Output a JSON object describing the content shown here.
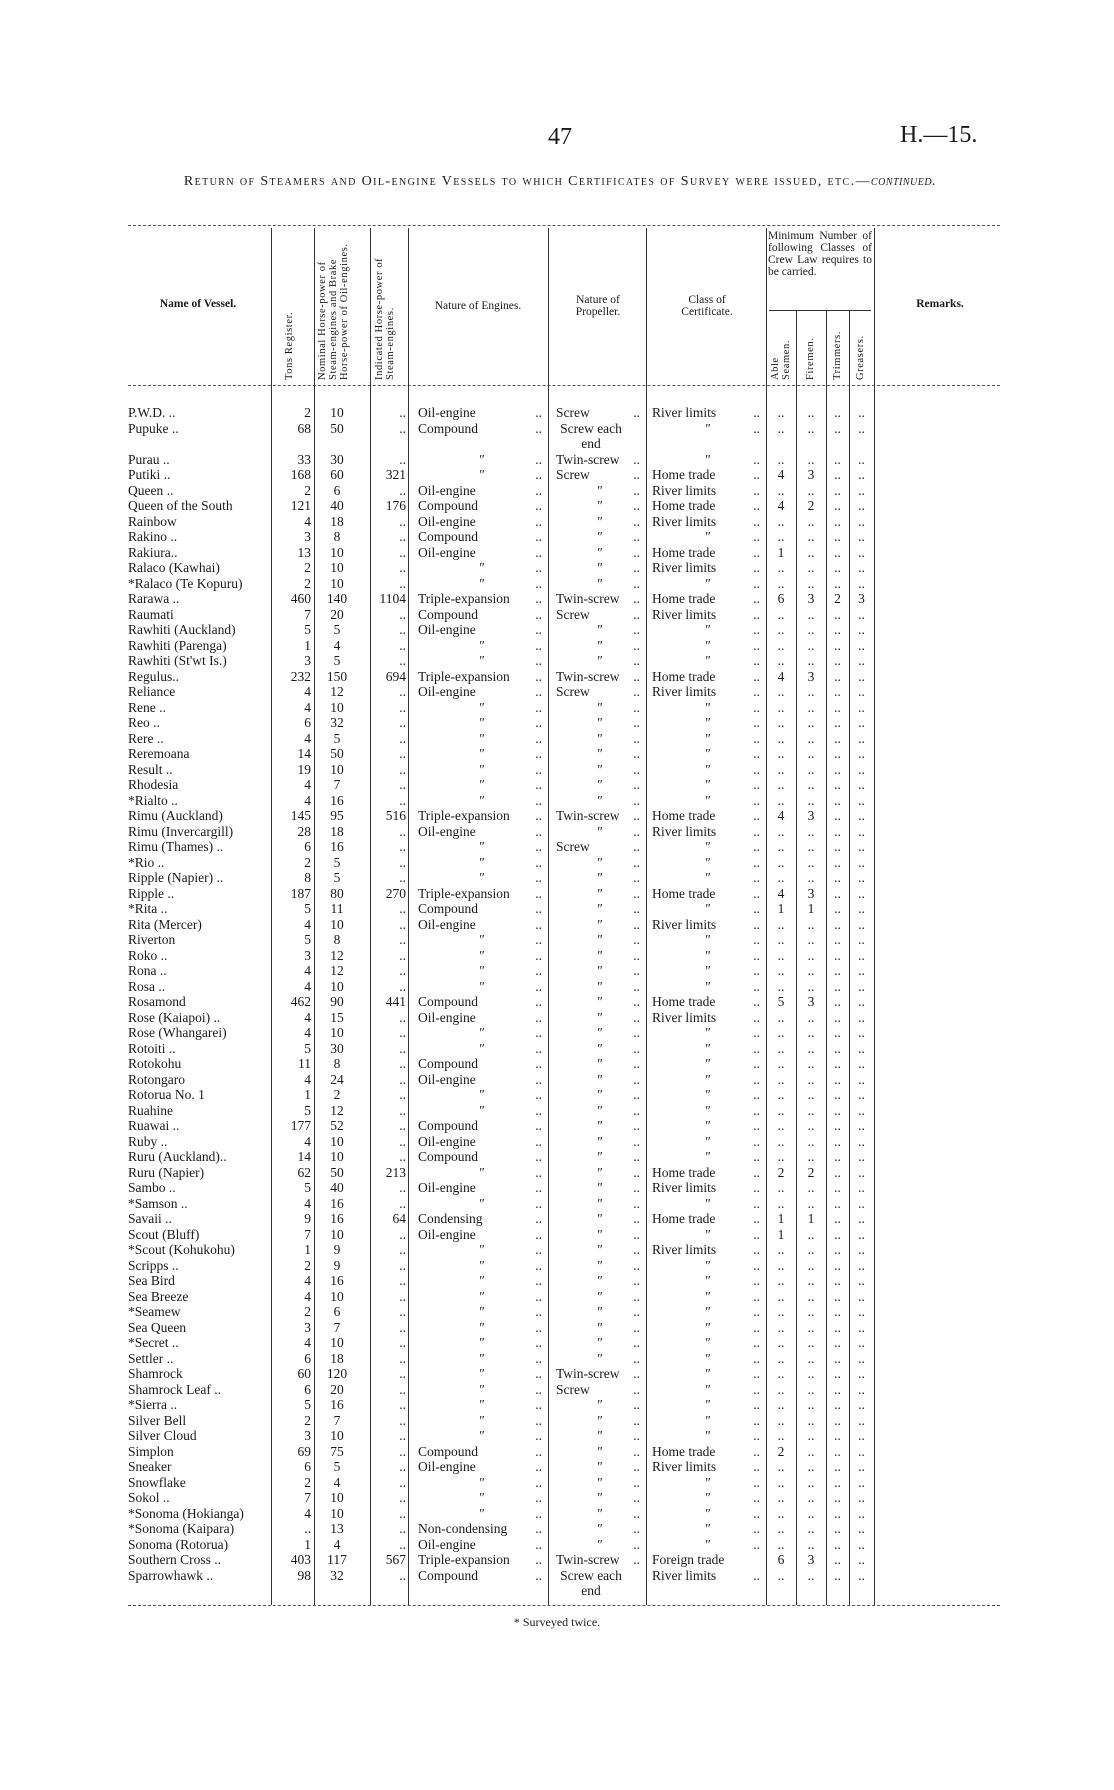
{
  "page_number": "47",
  "document_ref": "H.—15.",
  "title_main": "Return of Steamers and Oil-engine Vessels to which Certificates of Survey were issued, etc.—",
  "title_cont": "continued.",
  "headers": {
    "name": "Name of Vessel.",
    "tons": "Tons Register.",
    "nominal_hp": "Nominal Horse-power of Steam-engines and Brake Horse-power of Oil-engines.",
    "indicated_hp": "Indicated Horse-power of Steam-engines.",
    "engines": "Nature of Engines.",
    "propeller": "Nature of Propeller.",
    "certificate": "Class of Certificate.",
    "crew_group": "Minimum Number of following Classes of Crew Law requires to be carried.",
    "able": "Able Seamen.",
    "firemen": "Firemen.",
    "trimmers": "Trimmers.",
    "greasers": "Greasers.",
    "remarks": "Remarks."
  },
  "rows": [
    {
      "n": "P.W.D. ..",
      "t": "2",
      "nhp": "10",
      "ihp": "..",
      "eng": "Oil-engine",
      "prop": "Screw",
      "cert": "River limits",
      "as": "..",
      "fi": "..",
      "tr": "..",
      "gr": ".."
    },
    {
      "n": "Pupuke ..",
      "t": "68",
      "nhp": "50",
      "ihp": "..",
      "eng": "Compound",
      "prop": "Screw each end",
      "cert": "″",
      "as": "..",
      "fi": "..",
      "tr": "..",
      "gr": ".."
    },
    {
      "n": "Purau ..",
      "t": "33",
      "nhp": "30",
      "ihp": "..",
      "eng": "″",
      "prop": "Twin-screw",
      "cert": "″",
      "as": "..",
      "fi": "..",
      "tr": "..",
      "gr": ".."
    },
    {
      "n": "Putiki ..",
      "t": "168",
      "nhp": "60",
      "ihp": "321",
      "eng": "″",
      "prop": "Screw",
      "cert": "Home trade",
      "as": "4",
      "fi": "3",
      "tr": "..",
      "gr": ".."
    },
    {
      "n": "Queen ..",
      "t": "2",
      "nhp": "6",
      "ihp": "..",
      "eng": "Oil-engine",
      "prop": "″",
      "cert": "River limits",
      "as": "..",
      "fi": "..",
      "tr": "..",
      "gr": ".."
    },
    {
      "n": "Queen of the South",
      "t": "121",
      "nhp": "40",
      "ihp": "176",
      "eng": "Compound",
      "prop": "″",
      "cert": "Home trade",
      "as": "4",
      "fi": "2",
      "tr": "..",
      "gr": ".."
    },
    {
      "n": "Rainbow",
      "t": "4",
      "nhp": "18",
      "ihp": "..",
      "eng": "Oil-engine",
      "prop": "″",
      "cert": "River limits",
      "as": "..",
      "fi": "..",
      "tr": "..",
      "gr": ".."
    },
    {
      "n": "Rakino ..",
      "t": "3",
      "nhp": "8",
      "ihp": "..",
      "eng": "Compound",
      "prop": "″",
      "cert": "″",
      "as": "..",
      "fi": "..",
      "tr": "..",
      "gr": ".."
    },
    {
      "n": "Rakiura..",
      "t": "13",
      "nhp": "10",
      "ihp": "..",
      "eng": "Oil-engine",
      "prop": "″",
      "cert": "Home trade",
      "as": "1",
      "fi": "..",
      "tr": "..",
      "gr": ".."
    },
    {
      "n": "Ralaco (Kawhai)",
      "t": "2",
      "nhp": "10",
      "ihp": "..",
      "eng": "″",
      "prop": "″",
      "cert": "River limits",
      "as": "..",
      "fi": "..",
      "tr": "..",
      "gr": ".."
    },
    {
      "n": "*Ralaco (Te Kopuru)",
      "t": "2",
      "nhp": "10",
      "ihp": "..",
      "eng": "″",
      "prop": "″",
      "cert": "″",
      "as": "..",
      "fi": "..",
      "tr": "..",
      "gr": ".."
    },
    {
      "n": "Rarawa ..",
      "t": "460",
      "nhp": "140",
      "ihp": "1104",
      "eng": "Triple-expansion",
      "prop": "Twin-screw",
      "cert": "Home trade",
      "as": "6",
      "fi": "3",
      "tr": "2",
      "gr": "3"
    },
    {
      "n": "Raumati",
      "t": "7",
      "nhp": "20",
      "ihp": "..",
      "eng": "Compound",
      "prop": "Screw",
      "cert": "River limits",
      "as": "..",
      "fi": "..",
      "tr": "..",
      "gr": ".."
    },
    {
      "n": "Rawhiti (Auckland)",
      "t": "5",
      "nhp": "5",
      "ihp": "..",
      "eng": "Oil-engine",
      "prop": "″",
      "cert": "″",
      "as": "..",
      "fi": "..",
      "tr": "..",
      "gr": ".."
    },
    {
      "n": "Rawhiti (Parenga)",
      "t": "1",
      "nhp": "4",
      "ihp": "..",
      "eng": "″",
      "prop": "″",
      "cert": "″",
      "as": "..",
      "fi": "..",
      "tr": "..",
      "gr": ".."
    },
    {
      "n": "Rawhiti (St'wt Is.)",
      "t": "3",
      "nhp": "5",
      "ihp": "..",
      "eng": "″",
      "prop": "″",
      "cert": "″",
      "as": "..",
      "fi": "..",
      "tr": "..",
      "gr": ".."
    },
    {
      "n": "Regulus..",
      "t": "232",
      "nhp": "150",
      "ihp": "694",
      "eng": "Triple-expansion",
      "prop": "Twin-screw",
      "cert": "Home trade",
      "as": "4",
      "fi": "3",
      "tr": "..",
      "gr": ".."
    },
    {
      "n": "Reliance",
      "t": "4",
      "nhp": "12",
      "ihp": "..",
      "eng": "Oil-engine",
      "prop": "Screw",
      "cert": "River limits",
      "as": "..",
      "fi": "..",
      "tr": "..",
      "gr": ".."
    },
    {
      "n": "Rene ..",
      "t": "4",
      "nhp": "10",
      "ihp": "..",
      "eng": "″",
      "prop": "″",
      "cert": "″",
      "as": "..",
      "fi": "..",
      "tr": "..",
      "gr": ".."
    },
    {
      "n": "Reo ..",
      "t": "6",
      "nhp": "32",
      "ihp": "..",
      "eng": "″",
      "prop": "″",
      "cert": "″",
      "as": "..",
      "fi": "..",
      "tr": "..",
      "gr": ".."
    },
    {
      "n": "Rere ..",
      "t": "4",
      "nhp": "5",
      "ihp": "..",
      "eng": "″",
      "prop": "″",
      "cert": "″",
      "as": "..",
      "fi": "..",
      "tr": "..",
      "gr": ".."
    },
    {
      "n": "Reremoana",
      "t": "14",
      "nhp": "50",
      "ihp": "..",
      "eng": "″",
      "prop": "″",
      "cert": "″",
      "as": "..",
      "fi": "..",
      "tr": "..",
      "gr": ".."
    },
    {
      "n": "Result ..",
      "t": "19",
      "nhp": "10",
      "ihp": "..",
      "eng": "″",
      "prop": "″",
      "cert": "″",
      "as": "..",
      "fi": "..",
      "tr": "..",
      "gr": ".."
    },
    {
      "n": "Rhodesia",
      "t": "4",
      "nhp": "7",
      "ihp": "..",
      "eng": "″",
      "prop": "″",
      "cert": "″",
      "as": "..",
      "fi": "..",
      "tr": "..",
      "gr": ".."
    },
    {
      "n": "*Rialto ..",
      "t": "4",
      "nhp": "16",
      "ihp": "..",
      "eng": "″",
      "prop": "″",
      "cert": "″",
      "as": "..",
      "fi": "..",
      "tr": "..",
      "gr": ".."
    },
    {
      "n": "Rimu (Auckland)",
      "t": "145",
      "nhp": "95",
      "ihp": "516",
      "eng": "Triple-expansion",
      "prop": "Twin-screw",
      "cert": "Home trade",
      "as": "4",
      "fi": "3",
      "tr": "..",
      "gr": ".."
    },
    {
      "n": "Rimu (Invercargill)",
      "t": "28",
      "nhp": "18",
      "ihp": "..",
      "eng": "Oil-engine",
      "prop": "″",
      "cert": "River limits",
      "as": "..",
      "fi": "..",
      "tr": "..",
      "gr": ".."
    },
    {
      "n": "Rimu (Thames) ..",
      "t": "6",
      "nhp": "16",
      "ihp": "..",
      "eng": "″",
      "prop": "Screw",
      "cert": "″",
      "as": "..",
      "fi": "..",
      "tr": "..",
      "gr": ".."
    },
    {
      "n": "*Rio ..",
      "t": "2",
      "nhp": "5",
      "ihp": "..",
      "eng": "″",
      "prop": "″",
      "cert": "″",
      "as": "..",
      "fi": "..",
      "tr": "..",
      "gr": ".."
    },
    {
      "n": "Ripple (Napier) ..",
      "t": "8",
      "nhp": "5",
      "ihp": "..",
      "eng": "″",
      "prop": "″",
      "cert": "″",
      "as": "..",
      "fi": "..",
      "tr": "..",
      "gr": ".."
    },
    {
      "n": "Ripple ..",
      "t": "187",
      "nhp": "80",
      "ihp": "270",
      "eng": "Triple-expansion",
      "prop": "″",
      "cert": "Home trade",
      "as": "4",
      "fi": "3",
      "tr": "..",
      "gr": ".."
    },
    {
      "n": "*Rita ..",
      "t": "5",
      "nhp": "11",
      "ihp": "..",
      "eng": "Compound",
      "prop": "″",
      "cert": "″",
      "as": "1",
      "fi": "1",
      "tr": "..",
      "gr": ".."
    },
    {
      "n": "Rita (Mercer)",
      "t": "4",
      "nhp": "10",
      "ihp": "..",
      "eng": "Oil-engine",
      "prop": "″",
      "cert": "River limits",
      "as": "..",
      "fi": "..",
      "tr": "..",
      "gr": ".."
    },
    {
      "n": "Riverton",
      "t": "5",
      "nhp": "8",
      "ihp": "..",
      "eng": "″",
      "prop": "″",
      "cert": "″",
      "as": "..",
      "fi": "..",
      "tr": "..",
      "gr": ".."
    },
    {
      "n": "Roko ..",
      "t": "3",
      "nhp": "12",
      "ihp": "..",
      "eng": "″",
      "prop": "″",
      "cert": "″",
      "as": "..",
      "fi": "..",
      "tr": "..",
      "gr": ".."
    },
    {
      "n": "Rona ..",
      "t": "4",
      "nhp": "12",
      "ihp": "..",
      "eng": "″",
      "prop": "″",
      "cert": "″",
      "as": "..",
      "fi": "..",
      "tr": "..",
      "gr": ".."
    },
    {
      "n": "Rosa ..",
      "t": "4",
      "nhp": "10",
      "ihp": "..",
      "eng": "″",
      "prop": "″",
      "cert": "″",
      "as": "..",
      "fi": "..",
      "tr": "..",
      "gr": ".."
    },
    {
      "n": "Rosamond",
      "t": "462",
      "nhp": "90",
      "ihp": "441",
      "eng": "Compound",
      "prop": "″",
      "cert": "Home trade",
      "as": "5",
      "fi": "3",
      "tr": "..",
      "gr": ".."
    },
    {
      "n": "Rose (Kaiapoi) ..",
      "t": "4",
      "nhp": "15",
      "ihp": "..",
      "eng": "Oil-engine",
      "prop": "″",
      "cert": "River limits",
      "as": "..",
      "fi": "..",
      "tr": "..",
      "gr": ".."
    },
    {
      "n": "Rose (Whangarei)",
      "t": "4",
      "nhp": "10",
      "ihp": "..",
      "eng": "″",
      "prop": "″",
      "cert": "″",
      "as": "..",
      "fi": "..",
      "tr": "..",
      "gr": ".."
    },
    {
      "n": "Rotoiti ..",
      "t": "5",
      "nhp": "30",
      "ihp": "..",
      "eng": "″",
      "prop": "″",
      "cert": "″",
      "as": "..",
      "fi": "..",
      "tr": "..",
      "gr": ".."
    },
    {
      "n": "Rotokohu",
      "t": "11",
      "nhp": "8",
      "ihp": "..",
      "eng": "Compound",
      "prop": "″",
      "cert": "″",
      "as": "..",
      "fi": "..",
      "tr": "..",
      "gr": ".."
    },
    {
      "n": "Rotongaro",
      "t": "4",
      "nhp": "24",
      "ihp": "..",
      "eng": "Oil-engine",
      "prop": "″",
      "cert": "″",
      "as": "..",
      "fi": "..",
      "tr": "..",
      "gr": ".."
    },
    {
      "n": "Rotorua No. 1",
      "t": "1",
      "nhp": "2",
      "ihp": "..",
      "eng": "″",
      "prop": "″",
      "cert": "″",
      "as": "..",
      "fi": "..",
      "tr": "..",
      "gr": ".."
    },
    {
      "n": "Ruahine",
      "t": "5",
      "nhp": "12",
      "ihp": "..",
      "eng": "″",
      "prop": "″",
      "cert": "″",
      "as": "..",
      "fi": "..",
      "tr": "..",
      "gr": ".."
    },
    {
      "n": "Ruawai ..",
      "t": "177",
      "nhp": "52",
      "ihp": "..",
      "eng": "Compound",
      "prop": "″",
      "cert": "″",
      "as": "..",
      "fi": "..",
      "tr": "..",
      "gr": ".."
    },
    {
      "n": "Ruby ..",
      "t": "4",
      "nhp": "10",
      "ihp": "..",
      "eng": "Oil-engine",
      "prop": "″",
      "cert": "″",
      "as": "..",
      "fi": "..",
      "tr": "..",
      "gr": ".."
    },
    {
      "n": "Ruru (Auckland)..",
      "t": "14",
      "nhp": "10",
      "ihp": "..",
      "eng": "Compound",
      "prop": "″",
      "cert": "″",
      "as": "..",
      "fi": "..",
      "tr": "..",
      "gr": ".."
    },
    {
      "n": "Ruru (Napier)",
      "t": "62",
      "nhp": "50",
      "ihp": "213",
      "eng": "″",
      "prop": "″",
      "cert": "Home trade",
      "as": "2",
      "fi": "2",
      "tr": "..",
      "gr": ".."
    },
    {
      "n": "Sambo ..",
      "t": "5",
      "nhp": "40",
      "ihp": "..",
      "eng": "Oil-engine",
      "prop": "″",
      "cert": "River limits",
      "as": "..",
      "fi": "..",
      "tr": "..",
      "gr": ".."
    },
    {
      "n": "*Samson ..",
      "t": "4",
      "nhp": "16",
      "ihp": "..",
      "eng": "″",
      "prop": "″",
      "cert": "″",
      "as": "..",
      "fi": "..",
      "tr": "..",
      "gr": ".."
    },
    {
      "n": "Savaii ..",
      "t": "9",
      "nhp": "16",
      "ihp": "64",
      "eng": "Condensing",
      "prop": "″",
      "cert": "Home trade",
      "as": "1",
      "fi": "1",
      "tr": "..",
      "gr": ".."
    },
    {
      "n": "Scout (Bluff)",
      "t": "7",
      "nhp": "10",
      "ihp": "..",
      "eng": "Oil-engine",
      "prop": "″",
      "cert": "″",
      "as": "1",
      "fi": "..",
      "tr": "..",
      "gr": ".."
    },
    {
      "n": "*Scout (Kohukohu)",
      "t": "1",
      "nhp": "9",
      "ihp": "..",
      "eng": "″",
      "prop": "″",
      "cert": "River limits",
      "as": "..",
      "fi": "..",
      "tr": "..",
      "gr": ".."
    },
    {
      "n": "Scripps ..",
      "t": "2",
      "nhp": "9",
      "ihp": "..",
      "eng": "″",
      "prop": "″",
      "cert": "″",
      "as": "..",
      "fi": "..",
      "tr": "..",
      "gr": ".."
    },
    {
      "n": "Sea Bird",
      "t": "4",
      "nhp": "16",
      "ihp": "..",
      "eng": "″",
      "prop": "″",
      "cert": "″",
      "as": "..",
      "fi": "..",
      "tr": "..",
      "gr": ".."
    },
    {
      "n": "Sea Breeze",
      "t": "4",
      "nhp": "10",
      "ihp": "..",
      "eng": "″",
      "prop": "″",
      "cert": "″",
      "as": "..",
      "fi": "..",
      "tr": "..",
      "gr": ".."
    },
    {
      "n": "*Seamew",
      "t": "2",
      "nhp": "6",
      "ihp": "..",
      "eng": "″",
      "prop": "″",
      "cert": "″",
      "as": "..",
      "fi": "..",
      "tr": "..",
      "gr": ".."
    },
    {
      "n": "Sea Queen",
      "t": "3",
      "nhp": "7",
      "ihp": "..",
      "eng": "″",
      "prop": "″",
      "cert": "″",
      "as": "..",
      "fi": "..",
      "tr": "..",
      "gr": ".."
    },
    {
      "n": "*Secret ..",
      "t": "4",
      "nhp": "10",
      "ihp": "..",
      "eng": "″",
      "prop": "″",
      "cert": "″",
      "as": "..",
      "fi": "..",
      "tr": "..",
      "gr": ".."
    },
    {
      "n": "Settler ..",
      "t": "6",
      "nhp": "18",
      "ihp": "..",
      "eng": "″",
      "prop": "″",
      "cert": "″",
      "as": "..",
      "fi": "..",
      "tr": "..",
      "gr": ".."
    },
    {
      "n": "Shamrock",
      "t": "60",
      "nhp": "120",
      "ihp": "..",
      "eng": "″",
      "prop": "Twin-screw",
      "cert": "″",
      "as": "..",
      "fi": "..",
      "tr": "..",
      "gr": ".."
    },
    {
      "n": "Shamrock Leaf ..",
      "t": "6",
      "nhp": "20",
      "ihp": "..",
      "eng": "″",
      "prop": "Screw",
      "cert": "″",
      "as": "..",
      "fi": "..",
      "tr": "..",
      "gr": ".."
    },
    {
      "n": "*Sierra ..",
      "t": "5",
      "nhp": "16",
      "ihp": "..",
      "eng": "″",
      "prop": "″",
      "cert": "″",
      "as": "..",
      "fi": "..",
      "tr": "..",
      "gr": ".."
    },
    {
      "n": "Silver Bell",
      "t": "2",
      "nhp": "7",
      "ihp": "..",
      "eng": "″",
      "prop": "″",
      "cert": "″",
      "as": "..",
      "fi": "..",
      "tr": "..",
      "gr": ".."
    },
    {
      "n": "Silver Cloud",
      "t": "3",
      "nhp": "10",
      "ihp": "..",
      "eng": "″",
      "prop": "″",
      "cert": "″",
      "as": "..",
      "fi": "..",
      "tr": "..",
      "gr": ".."
    },
    {
      "n": "Simplon",
      "t": "69",
      "nhp": "75",
      "ihp": "..",
      "eng": "Compound",
      "prop": "″",
      "cert": "Home trade",
      "as": "2",
      "fi": "..",
      "tr": "..",
      "gr": ".."
    },
    {
      "n": "Sneaker",
      "t": "6",
      "nhp": "5",
      "ihp": "..",
      "eng": "Oil-engine",
      "prop": "″",
      "cert": "River limits",
      "as": "..",
      "fi": "..",
      "tr": "..",
      "gr": ".."
    },
    {
      "n": "Snowflake",
      "t": "2",
      "nhp": "4",
      "ihp": "..",
      "eng": "″",
      "prop": "″",
      "cert": "″",
      "as": "..",
      "fi": "..",
      "tr": "..",
      "gr": ".."
    },
    {
      "n": "Sokol ..",
      "t": "7",
      "nhp": "10",
      "ihp": "..",
      "eng": "″",
      "prop": "″",
      "cert": "″",
      "as": "..",
      "fi": "..",
      "tr": "..",
      "gr": ".."
    },
    {
      "n": "*Sonoma (Hokianga)",
      "t": "4",
      "nhp": "10",
      "ihp": "..",
      "eng": "″",
      "prop": "″",
      "cert": "″",
      "as": "..",
      "fi": "..",
      "tr": "..",
      "gr": ".."
    },
    {
      "n": "*Sonoma (Kaipara)",
      "t": "..",
      "nhp": "13",
      "ihp": "..",
      "eng": "Non-condensing",
      "prop": "″",
      "cert": "″",
      "as": "..",
      "fi": "..",
      "tr": "..",
      "gr": ".."
    },
    {
      "n": "Sonoma (Rotorua)",
      "t": "1",
      "nhp": "4",
      "ihp": "..",
      "eng": "Oil-engine",
      "prop": "″",
      "cert": "″",
      "as": "..",
      "fi": "..",
      "tr": "..",
      "gr": ".."
    },
    {
      "n": "Southern Cross ..",
      "t": "403",
      "nhp": "117",
      "ihp": "567",
      "eng": "Triple-expansion",
      "prop": "Twin-screw",
      "cert": "Foreign trade",
      "as": "6",
      "fi": "3",
      "tr": "..",
      "gr": ".."
    },
    {
      "n": "Sparrowhawk ..",
      "t": "98",
      "nhp": "32",
      "ihp": "..",
      "eng": "Compound",
      "prop": "Screw each end",
      "cert": "River limits",
      "as": "..",
      "fi": "..",
      "tr": "..",
      "gr": ".."
    }
  ],
  "footnote": "* Surveyed twice."
}
